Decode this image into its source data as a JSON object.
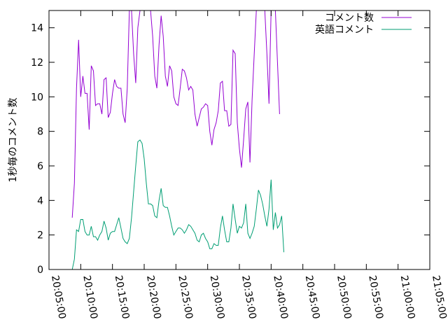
{
  "chart_data": {
    "type": "line",
    "title": "",
    "ylabel": "1秒毎のコメント数",
    "xlabel": "",
    "ylim": [
      0,
      15
    ],
    "yticks": [
      0,
      2,
      4,
      6,
      8,
      10,
      12,
      14
    ],
    "xlim": [
      "20:05:00",
      "21:05:00"
    ],
    "xticks": [
      "20:05:00",
      "20:10:00",
      "20:15:00",
      "20:20:00",
      "20:25:00",
      "20:30:00",
      "20:35:00",
      "20:40:00",
      "20:45:00",
      "20:50:00",
      "20:55:00",
      "21:00:00",
      "21:05:00"
    ],
    "grid": false,
    "legend": "top-right",
    "series": [
      {
        "name": "コメント数",
        "color": "#9400d3",
        "points": [
          [
            "20:08:40",
            3.0
          ],
          [
            "20:09:00",
            5.0
          ],
          [
            "20:09:20",
            10.5
          ],
          [
            "20:09:40",
            13.3
          ],
          [
            "20:10:00",
            10.0
          ],
          [
            "20:10:20",
            11.2
          ],
          [
            "20:10:40",
            10.2
          ],
          [
            "20:11:00",
            10.2
          ],
          [
            "20:11:20",
            8.1
          ],
          [
            "20:11:40",
            11.8
          ],
          [
            "20:12:00",
            11.5
          ],
          [
            "20:12:20",
            9.5
          ],
          [
            "20:12:40",
            9.6
          ],
          [
            "20:13:00",
            9.6
          ],
          [
            "20:13:20",
            9.0
          ],
          [
            "20:13:40",
            11.0
          ],
          [
            "20:14:00",
            11.1
          ],
          [
            "20:14:20",
            8.8
          ],
          [
            "20:14:40",
            9.1
          ],
          [
            "20:15:00",
            10.2
          ],
          [
            "20:15:20",
            11.0
          ],
          [
            "20:15:40",
            10.6
          ],
          [
            "20:16:00",
            10.5
          ],
          [
            "20:16:20",
            10.5
          ],
          [
            "20:16:40",
            9.0
          ],
          [
            "20:17:00",
            8.5
          ],
          [
            "20:17:20",
            10.5
          ],
          [
            "20:17:40",
            15.0
          ],
          [
            "20:18:00",
            15.0
          ],
          [
            "20:18:20",
            12.5
          ],
          [
            "20:18:40",
            10.8
          ],
          [
            "20:19:00",
            14.0
          ],
          [
            "20:19:20",
            15.0
          ],
          [
            "20:19:40",
            15.0
          ],
          [
            "20:20:00",
            15.0
          ],
          [
            "20:20:20",
            15.0
          ],
          [
            "20:20:40",
            15.0
          ],
          [
            "20:21:00",
            15.0
          ],
          [
            "20:21:20",
            13.5
          ],
          [
            "20:21:40",
            11.2
          ],
          [
            "20:22:00",
            10.5
          ],
          [
            "20:22:20",
            13.0
          ],
          [
            "20:22:40",
            14.7
          ],
          [
            "20:23:00",
            13.5
          ],
          [
            "20:23:20",
            11.2
          ],
          [
            "20:23:40",
            10.6
          ],
          [
            "20:24:00",
            11.8
          ],
          [
            "20:24:20",
            11.5
          ],
          [
            "20:24:40",
            10.0
          ],
          [
            "20:25:00",
            9.6
          ],
          [
            "20:25:20",
            9.5
          ],
          [
            "20:25:40",
            10.5
          ],
          [
            "20:26:00",
            11.6
          ],
          [
            "20:26:20",
            11.5
          ],
          [
            "20:26:40",
            11.1
          ],
          [
            "20:27:00",
            10.4
          ],
          [
            "20:27:20",
            10.6
          ],
          [
            "20:27:40",
            10.4
          ],
          [
            "20:28:00",
            9.0
          ],
          [
            "20:28:20",
            8.3
          ],
          [
            "20:28:40",
            8.8
          ],
          [
            "20:29:00",
            9.3
          ],
          [
            "20:29:20",
            9.4
          ],
          [
            "20:29:40",
            9.6
          ],
          [
            "20:30:00",
            9.5
          ],
          [
            "20:30:20",
            8.0
          ],
          [
            "20:30:40",
            7.2
          ],
          [
            "20:31:00",
            8.1
          ],
          [
            "20:31:20",
            8.5
          ],
          [
            "20:31:40",
            9.2
          ],
          [
            "20:32:00",
            10.8
          ],
          [
            "20:32:20",
            10.9
          ],
          [
            "20:32:40",
            9.2
          ],
          [
            "20:33:00",
            9.2
          ],
          [
            "20:33:20",
            8.3
          ],
          [
            "20:33:40",
            8.4
          ],
          [
            "20:34:00",
            12.7
          ],
          [
            "20:34:20",
            12.5
          ],
          [
            "20:34:40",
            8.5
          ],
          [
            "20:35:00",
            7.0
          ],
          [
            "20:35:20",
            5.9
          ],
          [
            "20:35:40",
            7.5
          ],
          [
            "20:36:00",
            9.3
          ],
          [
            "20:36:20",
            9.7
          ],
          [
            "20:36:40",
            6.2
          ],
          [
            "20:37:00",
            9.8
          ],
          [
            "20:37:20",
            12.5
          ],
          [
            "20:37:40",
            15.0
          ],
          [
            "20:38:00",
            15.0
          ],
          [
            "20:38:20",
            15.0
          ],
          [
            "20:38:40",
            15.0
          ],
          [
            "20:39:00",
            15.0
          ],
          [
            "20:39:20",
            12.5
          ],
          [
            "20:39:40",
            9.6
          ],
          [
            "20:40:00",
            15.0
          ],
          [
            "20:40:20",
            15.0
          ],
          [
            "20:40:40",
            15.0
          ],
          [
            "20:41:00",
            12.0
          ],
          [
            "20:41:20",
            9.0
          ]
        ]
      },
      {
        "name": "英語コメント",
        "color": "#009e73",
        "points": [
          [
            "20:08:00",
            0.0
          ],
          [
            "20:08:20",
            0.0
          ],
          [
            "20:08:40",
            0.0
          ],
          [
            "20:09:00",
            0.6
          ],
          [
            "20:09:20",
            2.3
          ],
          [
            "20:09:40",
            2.2
          ],
          [
            "20:10:00",
            2.9
          ],
          [
            "20:10:20",
            2.9
          ],
          [
            "20:10:40",
            2.2
          ],
          [
            "20:11:00",
            2.0
          ],
          [
            "20:11:20",
            2.0
          ],
          [
            "20:11:40",
            2.5
          ],
          [
            "20:12:00",
            1.9
          ],
          [
            "20:12:20",
            1.9
          ],
          [
            "20:12:40",
            1.7
          ],
          [
            "20:13:00",
            2.0
          ],
          [
            "20:13:20",
            2.2
          ],
          [
            "20:13:40",
            2.8
          ],
          [
            "20:14:00",
            2.4
          ],
          [
            "20:14:20",
            1.7
          ],
          [
            "20:14:40",
            2.1
          ],
          [
            "20:15:00",
            2.2
          ],
          [
            "20:15:20",
            2.2
          ],
          [
            "20:15:40",
            2.6
          ],
          [
            "20:16:00",
            3.0
          ],
          [
            "20:16:20",
            2.4
          ],
          [
            "20:16:40",
            1.8
          ],
          [
            "20:17:00",
            1.6
          ],
          [
            "20:17:20",
            1.5
          ],
          [
            "20:17:40",
            1.8
          ],
          [
            "20:18:00",
            3.0
          ],
          [
            "20:18:20",
            4.5
          ],
          [
            "20:18:40",
            6.0
          ],
          [
            "20:19:00",
            7.4
          ],
          [
            "20:19:20",
            7.5
          ],
          [
            "20:19:40",
            7.3
          ],
          [
            "20:20:00",
            6.4
          ],
          [
            "20:20:20",
            5.0
          ],
          [
            "20:20:40",
            3.8
          ],
          [
            "20:21:00",
            3.8
          ],
          [
            "20:21:20",
            3.7
          ],
          [
            "20:21:40",
            3.1
          ],
          [
            "20:22:00",
            3.0
          ],
          [
            "20:22:20",
            4.0
          ],
          [
            "20:22:40",
            4.7
          ],
          [
            "20:23:00",
            3.7
          ],
          [
            "20:23:20",
            3.6
          ],
          [
            "20:23:40",
            3.6
          ],
          [
            "20:24:00",
            3.1
          ],
          [
            "20:24:20",
            2.5
          ],
          [
            "20:24:40",
            2.0
          ],
          [
            "20:25:00",
            2.2
          ],
          [
            "20:25:20",
            2.4
          ],
          [
            "20:25:40",
            2.4
          ],
          [
            "20:26:00",
            2.3
          ],
          [
            "20:26:20",
            2.1
          ],
          [
            "20:26:40",
            2.3
          ],
          [
            "20:27:00",
            2.6
          ],
          [
            "20:27:20",
            2.5
          ],
          [
            "20:27:40",
            2.3
          ],
          [
            "20:28:00",
            2.1
          ],
          [
            "20:28:20",
            1.7
          ],
          [
            "20:28:40",
            1.6
          ],
          [
            "20:29:00",
            2.0
          ],
          [
            "20:29:20",
            2.1
          ],
          [
            "20:29:40",
            1.8
          ],
          [
            "20:30:00",
            1.6
          ],
          [
            "20:30:20",
            1.2
          ],
          [
            "20:30:40",
            1.2
          ],
          [
            "20:31:00",
            1.5
          ],
          [
            "20:31:20",
            1.4
          ],
          [
            "20:31:40",
            1.4
          ],
          [
            "20:32:00",
            2.4
          ],
          [
            "20:32:20",
            3.1
          ],
          [
            "20:32:40",
            2.3
          ],
          [
            "20:33:00",
            1.6
          ],
          [
            "20:33:20",
            1.6
          ],
          [
            "20:33:40",
            2.4
          ],
          [
            "20:34:00",
            3.8
          ],
          [
            "20:34:20",
            2.9
          ],
          [
            "20:34:40",
            2.1
          ],
          [
            "20:35:00",
            2.5
          ],
          [
            "20:35:20",
            2.4
          ],
          [
            "20:35:40",
            2.7
          ],
          [
            "20:36:00",
            3.8
          ],
          [
            "20:36:20",
            2.1
          ],
          [
            "20:36:40",
            1.8
          ],
          [
            "20:37:00",
            2.1
          ],
          [
            "20:37:20",
            2.5
          ],
          [
            "20:37:40",
            3.5
          ],
          [
            "20:38:00",
            4.6
          ],
          [
            "20:38:20",
            4.3
          ],
          [
            "20:38:40",
            3.8
          ],
          [
            "20:39:00",
            3.1
          ],
          [
            "20:39:20",
            2.5
          ],
          [
            "20:39:40",
            3.5
          ],
          [
            "20:40:00",
            5.2
          ],
          [
            "20:40:20",
            2.3
          ],
          [
            "20:40:40",
            3.3
          ],
          [
            "20:41:00",
            2.4
          ],
          [
            "20:41:20",
            2.6
          ],
          [
            "20:41:40",
            3.1
          ],
          [
            "20:42:00",
            1.0
          ]
        ]
      }
    ]
  }
}
